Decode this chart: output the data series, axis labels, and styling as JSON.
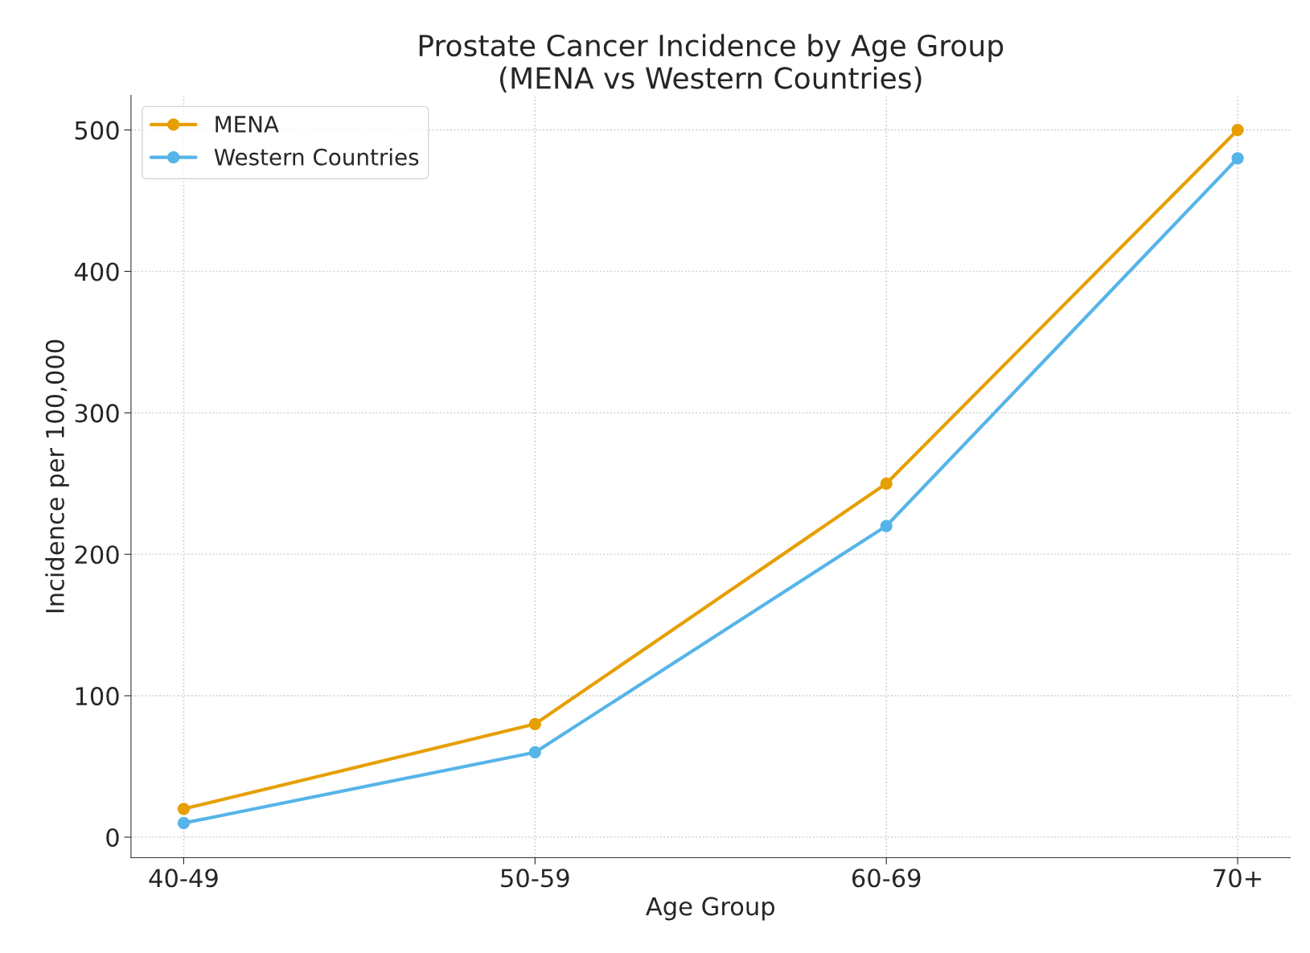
{
  "chart_data": {
    "type": "line",
    "title": "Prostate Cancer Incidence by Age Group\n(MENA vs Western Countries)",
    "xlabel": "Age Group",
    "ylabel": "Incidence per 100,000",
    "categories": [
      "40-49",
      "50-59",
      "60-69",
      "70+"
    ],
    "series": [
      {
        "name": "MENA",
        "color": "#e69f00",
        "values": [
          20,
          80,
          250,
          500
        ]
      },
      {
        "name": "Western Countries",
        "color": "#56b4e9",
        "values": [
          10,
          60,
          220,
          480
        ]
      }
    ],
    "ylim": [
      -14.5,
      524.5
    ],
    "yticks": [
      0,
      100,
      200,
      300,
      400,
      500
    ],
    "grid": true,
    "legend": "top left",
    "marker": "circle",
    "line_style": "solid"
  }
}
